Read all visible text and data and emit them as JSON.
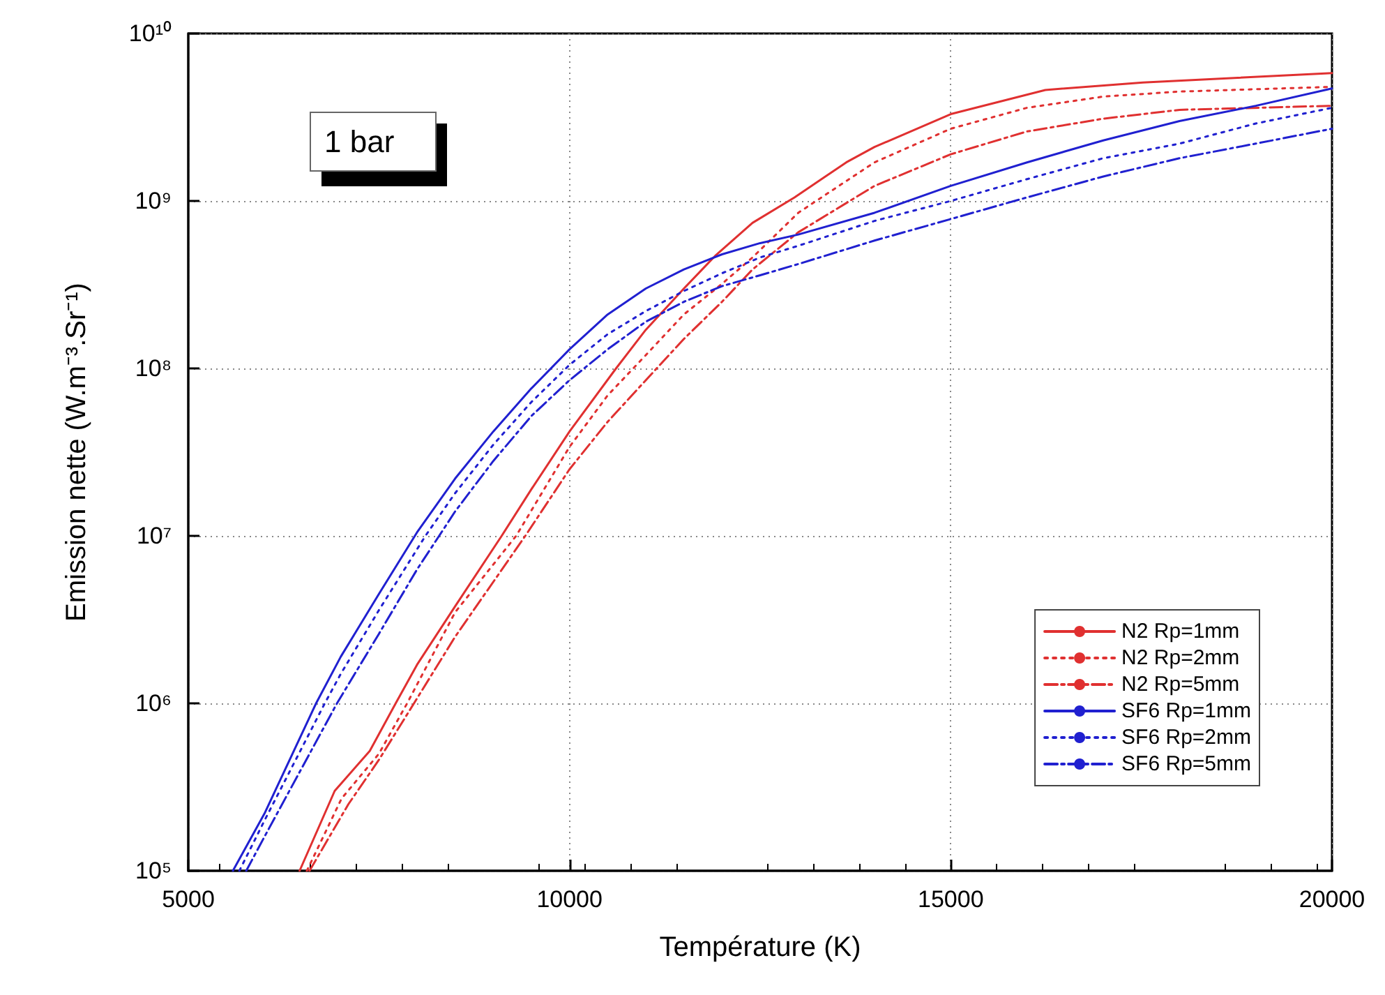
{
  "chart_data": {
    "type": "line",
    "xlabel": "Température (K)",
    "ylabel": "Emission nette (W.m⁻³.Sr⁻¹)",
    "annotations": [
      "1 bar"
    ],
    "xlim": [
      5000,
      20000
    ],
    "xticks": [
      5000,
      10000,
      15000,
      20000
    ],
    "ylim": [
      100000,
      10000000000
    ],
    "log": "y",
    "yticks": [
      {
        "value": 100000,
        "label": "10⁵"
      },
      {
        "value": 1000000,
        "label": "10⁶"
      },
      {
        "value": 10000000,
        "label": "10⁷"
      },
      {
        "value": 100000000,
        "label": "10⁸"
      },
      {
        "value": 1000000000,
        "label": "10⁹"
      },
      {
        "value": 10000000000,
        "label": "10¹⁰"
      }
    ],
    "grid": true,
    "legend": "bottom right",
    "marker": "none",
    "series": [
      {
        "name": "N2 Rp=1mm",
        "color": "#e03030",
        "line_style": "solid",
        "x": [
          6460,
          6920,
          7380,
          7720,
          8000,
          8500,
          9110,
          9500,
          10000,
          10610,
          11000,
          11500,
          11910,
          12400,
          12950,
          13630,
          14000,
          15000,
          16240,
          17520,
          20000
        ],
        "values": [
          100000.0,
          300000.0,
          520000.0,
          1000000.0,
          1700000.0,
          3800000.0,
          10000000.0,
          19000000.0,
          42000000.0,
          100000000.0,
          170000000.0,
          300000000.0,
          470000000.0,
          740000000.0,
          1050000000.0,
          1700000000.0,
          2100000000.0,
          3300000000.0,
          4600000000.0,
          5100000000.0,
          5800000000.0
        ]
      },
      {
        "name": "N2 Rp=2mm",
        "color": "#e03030",
        "line_style": "dotted",
        "x": [
          6555,
          7010,
          7500,
          7870,
          8500,
          9300,
          10000,
          10500,
          11000,
          11500,
          12000,
          12400,
          13000,
          14000,
          15000,
          16000,
          17000,
          18000,
          20000
        ],
        "values": [
          100000.0,
          270000.0,
          500000.0,
          1000000.0,
          3500000.0,
          10000000.0,
          34000000.0,
          69000000.0,
          120000000.0,
          210000000.0,
          320000000.0,
          460000000.0,
          850000000.0,
          1700000000.0,
          2700000000.0,
          3600000000.0,
          4200000000.0,
          4500000000.0,
          4800000000.0
        ]
      },
      {
        "name": "N2 Rp=5mm",
        "color": "#e03030",
        "line_style": "dashdot",
        "x": [
          6590,
          7100,
          7500,
          7960,
          8500,
          9420,
          10000,
          10500,
          11000,
          11500,
          12000,
          12400,
          13000,
          14000,
          15000,
          16000,
          17000,
          18000,
          20000
        ],
        "values": [
          100000.0,
          250000.0,
          460000.0,
          1000000.0,
          2500000.0,
          10000000.0,
          25000000.0,
          48000000.0,
          85000000.0,
          150000000.0,
          250000000.0,
          390000000.0,
          650000000.0,
          1230000000.0,
          1900000000.0,
          2600000000.0,
          3100000000.0,
          3500000000.0,
          3700000000.0
        ]
      },
      {
        "name": "SF6 Rp=1mm",
        "color": "#2020d0",
        "line_style": "solid",
        "x": [
          5585,
          6000,
          6676,
          7000,
          7500,
          8000,
          8500,
          9000,
          9500,
          10000,
          10500,
          11000,
          11500,
          12000,
          12500,
          13000,
          14000,
          15000,
          16000,
          17000,
          18000,
          19000,
          20000
        ],
        "values": [
          100000.0,
          220000.0,
          1000000.0,
          1900000.0,
          4500000.0,
          10500000.0,
          22000000.0,
          42000000.0,
          76000000.0,
          130000000.0,
          210000000.0,
          300000000.0,
          390000000.0,
          480000000.0,
          560000000.0,
          630000000.0,
          850000000.0,
          1230000000.0,
          1700000000.0,
          2300000000.0,
          3000000000.0,
          3700000000.0,
          4700000000.0
        ]
      },
      {
        "name": "SF6 Rp=2mm",
        "color": "#2020d0",
        "line_style": "dotted",
        "x": [
          5670,
          6000,
          6790,
          7000,
          7500,
          8110,
          8500,
          9000,
          9500,
          10000,
          10500,
          11000,
          11500,
          12000,
          12500,
          13000,
          14000,
          15000,
          16000,
          17000,
          18000,
          19000,
          20000
        ],
        "values": [
          100000.0,
          200000.0,
          1000000.0,
          1500000.0,
          3600000.0,
          10000000.0,
          18000000.0,
          35000000.0,
          63000000.0,
          105000000.0,
          160000000.0,
          220000000.0,
          290000000.0,
          370000000.0,
          460000000.0,
          540000000.0,
          760000000.0,
          1000000000.0,
          1350000000.0,
          1800000000.0,
          2200000000.0,
          2900000000.0,
          3600000000.0
        ]
      },
      {
        "name": "SF6 Rp=5mm",
        "color": "#2020d0",
        "line_style": "dashdot",
        "x": [
          5760,
          6000,
          6500,
          6950,
          7500,
          8000,
          8290,
          8500,
          9000,
          9500,
          10000,
          10500,
          11000,
          11500,
          12000,
          12500,
          13000,
          14000,
          15000,
          16000,
          17000,
          18000,
          19000,
          20000
        ],
        "values": [
          100000.0,
          160000.0,
          420000.0,
          1000000.0,
          2600000.0,
          6300000.0,
          10000000.0,
          14000000.0,
          28000000.0,
          52000000.0,
          85000000.0,
          130000000.0,
          190000000.0,
          250000000.0,
          310000000.0,
          360000000.0,
          420000000.0,
          580000000.0,
          780000000.0,
          1050000000.0,
          1400000000.0,
          1800000000.0,
          2200000000.0,
          2700000000.0
        ]
      }
    ]
  }
}
